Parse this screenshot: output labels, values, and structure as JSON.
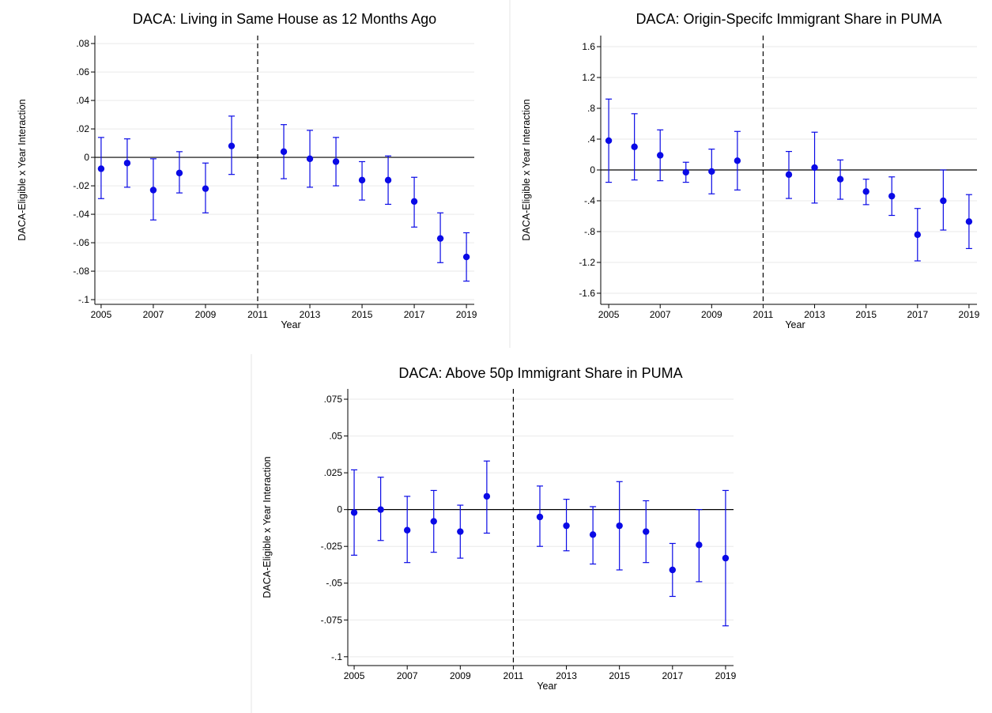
{
  "chart_data": [
    {
      "type": "errorbar",
      "title": "DACA: Living in Same House as 12 Months Ago",
      "x_label": "Year",
      "y_label": "DACA-Eligible x Year Interaction",
      "color": "#0a0ae6",
      "x": [
        2005,
        2006,
        2007,
        2008,
        2009,
        2010,
        2012,
        2013,
        2014,
        2015,
        2016,
        2017,
        2018,
        2019
      ],
      "values": [
        -0.008,
        -0.004,
        -0.023,
        -0.011,
        -0.022,
        0.008,
        0.004,
        -0.001,
        -0.003,
        -0.016,
        -0.016,
        -0.031,
        -0.057,
        -0.07
      ],
      "lower": [
        -0.029,
        -0.021,
        -0.044,
        -0.025,
        -0.039,
        -0.012,
        -0.015,
        -0.021,
        -0.02,
        -0.03,
        -0.033,
        -0.049,
        -0.074,
        -0.087
      ],
      "upper": [
        0.014,
        0.013,
        -0.001,
        0.004,
        -0.004,
        0.029,
        0.023,
        0.019,
        0.014,
        -0.003,
        0.001,
        -0.014,
        -0.039,
        -0.053
      ],
      "xlim": [
        2004.76,
        2019.3
      ],
      "xticks": [
        2005,
        2007,
        2009,
        2011,
        2013,
        2015,
        2017,
        2019
      ],
      "ylim": [
        -0.1033,
        0.0856
      ],
      "yticks": [
        {
          "value": -0.1,
          "label": "-.1"
        },
        {
          "value": -0.08,
          "label": "-.08"
        },
        {
          "value": -0.06,
          "label": "-.06"
        },
        {
          "value": -0.04,
          "label": "-.04"
        },
        {
          "value": -0.02,
          "label": "-.02"
        },
        0,
        {
          "value": 0.02,
          "label": ".02"
        },
        {
          "value": 0.04,
          "label": ".04"
        },
        {
          "value": 0.06,
          "label": ".06"
        },
        {
          "value": 0.08,
          "label": ".08"
        }
      ],
      "hline": 0,
      "vline": 2011,
      "grid": true
    },
    {
      "type": "errorbar",
      "title": "DACA: Origin-Specifc Immigrant Share in PUMA",
      "x_label": "Year",
      "y_label": "DACA-Eligible x Year Interaction",
      "color": "#0a0ae6",
      "x": [
        2005,
        2006,
        2007,
        2008,
        2009,
        2010,
        2012,
        2013,
        2014,
        2015,
        2016,
        2017,
        2018,
        2019
      ],
      "values": [
        0.38,
        0.3,
        0.19,
        -0.03,
        -0.02,
        0.12,
        -0.06,
        0.03,
        -0.12,
        -0.28,
        -0.34,
        -0.84,
        -0.4,
        -0.67
      ],
      "lower": [
        -0.16,
        -0.13,
        -0.14,
        -0.16,
        -0.31,
        -0.26,
        -0.37,
        -0.43,
        -0.38,
        -0.45,
        -0.59,
        -1.18,
        -0.78,
        -1.02
      ],
      "upper": [
        0.92,
        0.73,
        0.52,
        0.1,
        0.27,
        0.5,
        0.24,
        0.49,
        0.13,
        -0.12,
        -0.09,
        -0.5,
        0.0,
        -0.32
      ],
      "xlim": [
        2004.69,
        2019.31
      ],
      "xticks": [
        2005,
        2007,
        2009,
        2011,
        2013,
        2015,
        2017,
        2019
      ],
      "ylim": [
        -1.744,
        1.744
      ],
      "yticks": [
        {
          "value": -1.6,
          "label": "-1.6"
        },
        -1.2,
        {
          "value": -0.8,
          "label": "-.8"
        },
        {
          "value": -0.4,
          "label": "-.4"
        },
        0,
        {
          "value": 0.4,
          "label": ".4"
        },
        {
          "value": 0.8,
          "label": ".8"
        },
        1.2,
        1.6
      ],
      "hline": 0,
      "vline": 2011,
      "grid": true
    },
    {
      "type": "errorbar",
      "title": "DACA: Above 50p Immigrant Share in PUMA",
      "x_label": "Year",
      "y_label": "DACA-Eligible x Year Interaction",
      "color": "#0a0ae6",
      "x": [
        2005,
        2006,
        2007,
        2008,
        2009,
        2010,
        2012,
        2013,
        2014,
        2015,
        2016,
        2017,
        2018,
        2019
      ],
      "values": [
        -0.002,
        0.0,
        -0.014,
        -0.008,
        -0.015,
        0.009,
        -0.005,
        -0.011,
        -0.017,
        -0.011,
        -0.015,
        -0.041,
        -0.024,
        -0.033
      ],
      "lower": [
        -0.031,
        -0.021,
        -0.036,
        -0.029,
        -0.033,
        -0.016,
        -0.025,
        -0.028,
        -0.037,
        -0.041,
        -0.036,
        -0.059,
        -0.049,
        -0.079
      ],
      "upper": [
        0.027,
        0.022,
        0.009,
        0.013,
        0.003,
        0.033,
        0.016,
        0.007,
        0.002,
        0.019,
        0.006,
        -0.023,
        0.0,
        0.013
      ],
      "xlim": [
        2004.76,
        2019.3
      ],
      "xticks": [
        2005,
        2007,
        2009,
        2011,
        2013,
        2015,
        2017,
        2019
      ],
      "ylim": [
        -0.106,
        0.082
      ],
      "yticks": [
        {
          "value": -0.1,
          "label": "-.1"
        },
        {
          "value": -0.075,
          "label": "-.075"
        },
        {
          "value": -0.05,
          "label": "-.05"
        },
        {
          "value": -0.025,
          "label": "-.025"
        },
        0,
        {
          "value": 0.025,
          "label": ".025"
        },
        {
          "value": 0.05,
          "label": ".05"
        },
        {
          "value": 0.075,
          "label": ".075"
        }
      ],
      "hline": 0,
      "vline": 2011,
      "grid": true
    }
  ]
}
